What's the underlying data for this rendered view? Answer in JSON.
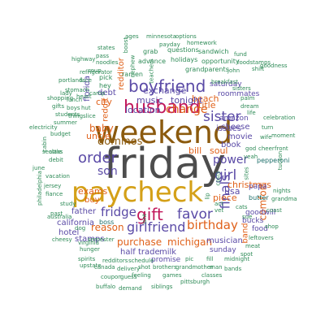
{
  "palette": {
    "gray": "#4d4d4d",
    "gold": "#d4a017",
    "brown": "#8b5a0e",
    "purple": "#5a4aa6",
    "magenta": "#c2185b",
    "orange": "#e0611a",
    "teal": "#2e8b57",
    "darkteal": "#1d6f6a"
  },
  "words": [
    {
      "text": "friday",
      "color": "gray"
    },
    {
      "text": "weekend",
      "color": "brown"
    },
    {
      "text": "paycheck",
      "color": "gold"
    },
    {
      "text": "husband",
      "color": "magenta"
    },
    {
      "text": "boyfriend",
      "color": "purple"
    },
    {
      "text": "gift",
      "color": "magenta"
    },
    {
      "text": "order",
      "color": "purple"
    },
    {
      "text": "favor",
      "color": "purple"
    },
    {
      "text": "sister",
      "color": "purple"
    },
    {
      "text": "girlfriend",
      "color": "purple"
    },
    {
      "text": "fridge",
      "color": "purple"
    },
    {
      "text": "birthday",
      "color": "orange"
    },
    {
      "text": "son",
      "color": "purple"
    },
    {
      "text": "finals",
      "color": "purple"
    },
    {
      "text": "girl",
      "color": "purple"
    },
    {
      "text": "power",
      "color": "purple"
    },
    {
      "text": "change",
      "color": "orange"
    },
    {
      "text": "dominos",
      "color": "brown"
    },
    {
      "text": "baby",
      "color": "orange"
    },
    {
      "text": "beach",
      "color": "orange"
    },
    {
      "text": "location",
      "color": "purple"
    },
    {
      "text": "michigan",
      "color": "orange"
    },
    {
      "text": "purchase",
      "color": "orange"
    },
    {
      "text": "reason",
      "color": "orange"
    },
    {
      "text": "exchange",
      "color": "purple"
    },
    {
      "text": "tonight",
      "color": "purple"
    },
    {
      "text": "music",
      "color": "purple"
    },
    {
      "text": "christmas",
      "color": "orange"
    },
    {
      "text": "comfort",
      "color": "orange"
    },
    {
      "text": "bill",
      "color": "orange"
    },
    {
      "text": "soul",
      "color": "orange"
    },
    {
      "text": "usa",
      "color": "purple"
    },
    {
      "text": "piece",
      "color": "orange"
    },
    {
      "text": "title",
      "color": "orange"
    },
    {
      "text": "cheese",
      "color": "purple"
    },
    {
      "text": "uncle",
      "color": "orange"
    },
    {
      "text": "city",
      "color": "orange"
    },
    {
      "text": "exams",
      "color": "orange"
    },
    {
      "text": "father",
      "color": "purple"
    },
    {
      "text": "buy",
      "color": "orange"
    },
    {
      "text": "reddit",
      "color": "orange"
    },
    {
      "text": "redditor",
      "color": "orange"
    },
    {
      "text": "florida",
      "color": "purple"
    },
    {
      "text": "debt",
      "color": "purple"
    },
    {
      "text": "band",
      "color": "orange"
    },
    {
      "text": "movie",
      "color": "purple"
    },
    {
      "text": "issues",
      "color": "purple"
    },
    {
      "text": "book",
      "color": "purple"
    },
    {
      "text": "musician",
      "color": "purple"
    },
    {
      "text": "trade",
      "color": "purple"
    },
    {
      "text": "milk",
      "color": "purple"
    },
    {
      "text": "half",
      "color": "purple"
    },
    {
      "text": "california",
      "color": "purple"
    },
    {
      "text": "hotel",
      "color": "purple"
    },
    {
      "text": "stamps",
      "color": "purple"
    },
    {
      "text": "boss",
      "color": "darkteal"
    },
    {
      "text": "amazon",
      "color": "purple"
    },
    {
      "text": "saturday",
      "color": "purple"
    },
    {
      "text": "roommates",
      "color": "purple"
    },
    {
      "text": "papa",
      "color": "purple"
    },
    {
      "text": "goodwill",
      "color": "purple"
    },
    {
      "text": "butter",
      "color": "darkteal"
    },
    {
      "text": "food",
      "color": "purple"
    },
    {
      "text": "bucks",
      "color": "purple"
    },
    {
      "text": "sunday",
      "color": "purple"
    },
    {
      "text": "promise",
      "color": "purple"
    },
    {
      "text": "pepperoni",
      "color": "darkteal"
    },
    {
      "text": "holidays",
      "color": "teal"
    },
    {
      "text": "advance",
      "color": "teal"
    },
    {
      "text": "grandparents",
      "color": "teal"
    },
    {
      "text": "questions",
      "color": "teal"
    },
    {
      "text": "sandwich",
      "color": "teal"
    },
    {
      "text": "opportunity",
      "color": "teal"
    },
    {
      "text": "payday",
      "color": "teal"
    },
    {
      "text": "homework",
      "color": "teal"
    },
    {
      "text": "minnesota",
      "color": "teal"
    },
    {
      "text": "options",
      "color": "teal"
    },
    {
      "text": "ages",
      "color": "teal"
    },
    {
      "text": "boost",
      "color": "teal"
    },
    {
      "text": "states",
      "color": "teal"
    },
    {
      "text": "pass",
      "color": "teal"
    },
    {
      "text": "highway",
      "color": "teal"
    },
    {
      "text": "noodles",
      "color": "teal"
    },
    {
      "text": "soup",
      "color": "teal"
    },
    {
      "text": "refrigerator",
      "color": "teal"
    },
    {
      "text": "portland",
      "color": "teal"
    },
    {
      "text": "face",
      "color": "teal"
    },
    {
      "text": "pick",
      "color": "teal"
    },
    {
      "text": "hey",
      "color": "teal"
    },
    {
      "text": "ramen",
      "color": "teal"
    },
    {
      "text": "grab",
      "color": "teal"
    },
    {
      "text": "teachers",
      "color": "teal"
    },
    {
      "text": "nephew",
      "color": "teal"
    },
    {
      "text": "breakfast",
      "color": "teal"
    },
    {
      "text": "john",
      "color": "teal"
    },
    {
      "text": "foodstamps",
      "color": "teal"
    },
    {
      "text": "sisters",
      "color": "teal"
    },
    {
      "text": "palm",
      "color": "teal"
    },
    {
      "text": "shift",
      "color": "teal"
    },
    {
      "text": "goodness",
      "color": "teal"
    },
    {
      "text": "fund",
      "color": "teal"
    },
    {
      "text": "stomach",
      "color": "teal"
    },
    {
      "text": "camp",
      "color": "teal"
    },
    {
      "text": "shopping",
      "color": "teal"
    },
    {
      "text": "heart",
      "color": "teal"
    },
    {
      "text": "gifts",
      "color": "teal"
    },
    {
      "text": "boys",
      "color": "teal"
    },
    {
      "text": "hut",
      "color": "teal"
    },
    {
      "text": "students",
      "color": "teal"
    },
    {
      "text": "summer",
      "color": "teal"
    },
    {
      "text": "electricity",
      "color": "teal"
    },
    {
      "text": "budget",
      "color": "teal"
    },
    {
      "text": "slice",
      "color": "teal"
    },
    {
      "text": "cabin",
      "color": "teal"
    },
    {
      "text": "seattle",
      "color": "teal"
    },
    {
      "text": "debit",
      "color": "teal"
    },
    {
      "text": "class",
      "color": "teal"
    },
    {
      "text": "june",
      "color": "teal"
    },
    {
      "text": "vacation",
      "color": "teal"
    },
    {
      "text": "jersey",
      "color": "teal"
    },
    {
      "text": "fiance",
      "color": "teal"
    },
    {
      "text": "study",
      "color": "teal"
    },
    {
      "text": "past",
      "color": "teal"
    },
    {
      "text": "dog",
      "color": "teal"
    },
    {
      "text": "australia",
      "color": "teal"
    },
    {
      "text": "cheesy",
      "color": "teal"
    },
    {
      "text": "semester",
      "color": "teal"
    },
    {
      "text": "hunger",
      "color": "teal"
    },
    {
      "text": "spirits",
      "color": "teal"
    },
    {
      "text": "redditors",
      "color": "teal"
    },
    {
      "text": "schedule",
      "color": "teal"
    },
    {
      "text": "delivery",
      "color": "teal"
    },
    {
      "text": "brothers",
      "color": "teal"
    },
    {
      "text": "grandmother",
      "color": "teal"
    },
    {
      "text": "guess",
      "color": "teal"
    },
    {
      "text": "feeling",
      "color": "teal"
    },
    {
      "text": "games",
      "color": "teal"
    },
    {
      "text": "pittsburgh",
      "color": "teal"
    },
    {
      "text": "siblings",
      "color": "teal"
    },
    {
      "text": "demand",
      "color": "teal"
    },
    {
      "text": "coupon",
      "color": "teal"
    },
    {
      "text": "canada",
      "color": "teal"
    },
    {
      "text": "buffalo",
      "color": "teal"
    },
    {
      "text": "upstate",
      "color": "teal"
    },
    {
      "text": "shot",
      "color": "teal"
    },
    {
      "text": "virginia",
      "color": "teal"
    },
    {
      "text": "pic",
      "color": "teal"
    },
    {
      "text": "fill",
      "color": "teal"
    },
    {
      "text": "midnight",
      "color": "teal"
    },
    {
      "text": "man",
      "color": "teal"
    },
    {
      "text": "classes",
      "color": "teal"
    },
    {
      "text": "bands",
      "color": "teal"
    },
    {
      "text": "spot",
      "color": "teal"
    },
    {
      "text": "meat",
      "color": "teal"
    },
    {
      "text": "leftovers",
      "color": "teal"
    },
    {
      "text": "shop",
      "color": "teal"
    },
    {
      "text": "coast",
      "color": "teal"
    },
    {
      "text": "grandma",
      "color": "teal"
    },
    {
      "text": "nights",
      "color": "teal"
    },
    {
      "text": "sue",
      "color": "teal"
    },
    {
      "text": "cats",
      "color": "teal"
    },
    {
      "text": "act",
      "color": "teal"
    },
    {
      "text": "vet",
      "color": "teal"
    },
    {
      "text": "lip",
      "color": "teal"
    },
    {
      "text": "costs",
      "color": "teal"
    },
    {
      "text": "sites",
      "color": "teal"
    },
    {
      "text": "god",
      "color": "teal"
    },
    {
      "text": "cheer",
      "color": "teal"
    },
    {
      "text": "front",
      "color": "teal"
    },
    {
      "text": "yeah",
      "color": "teal"
    },
    {
      "text": "tucson",
      "color": "teal"
    },
    {
      "text": "moment",
      "color": "teal"
    },
    {
      "text": "turn",
      "color": "teal"
    },
    {
      "text": "celebration",
      "color": "teal"
    },
    {
      "text": "dream",
      "color": "teal"
    },
    {
      "text": "life",
      "color": "teal"
    },
    {
      "text": "philadelphia",
      "color": "teal"
    },
    {
      "text": "lunch",
      "color": "teal"
    },
    {
      "text": "lady",
      "color": "teal"
    },
    {
      "text": "thing",
      "color": "teal"
    },
    {
      "text": "wife",
      "color": "teal"
    },
    {
      "text": "isnt",
      "color": "teal"
    }
  ]
}
